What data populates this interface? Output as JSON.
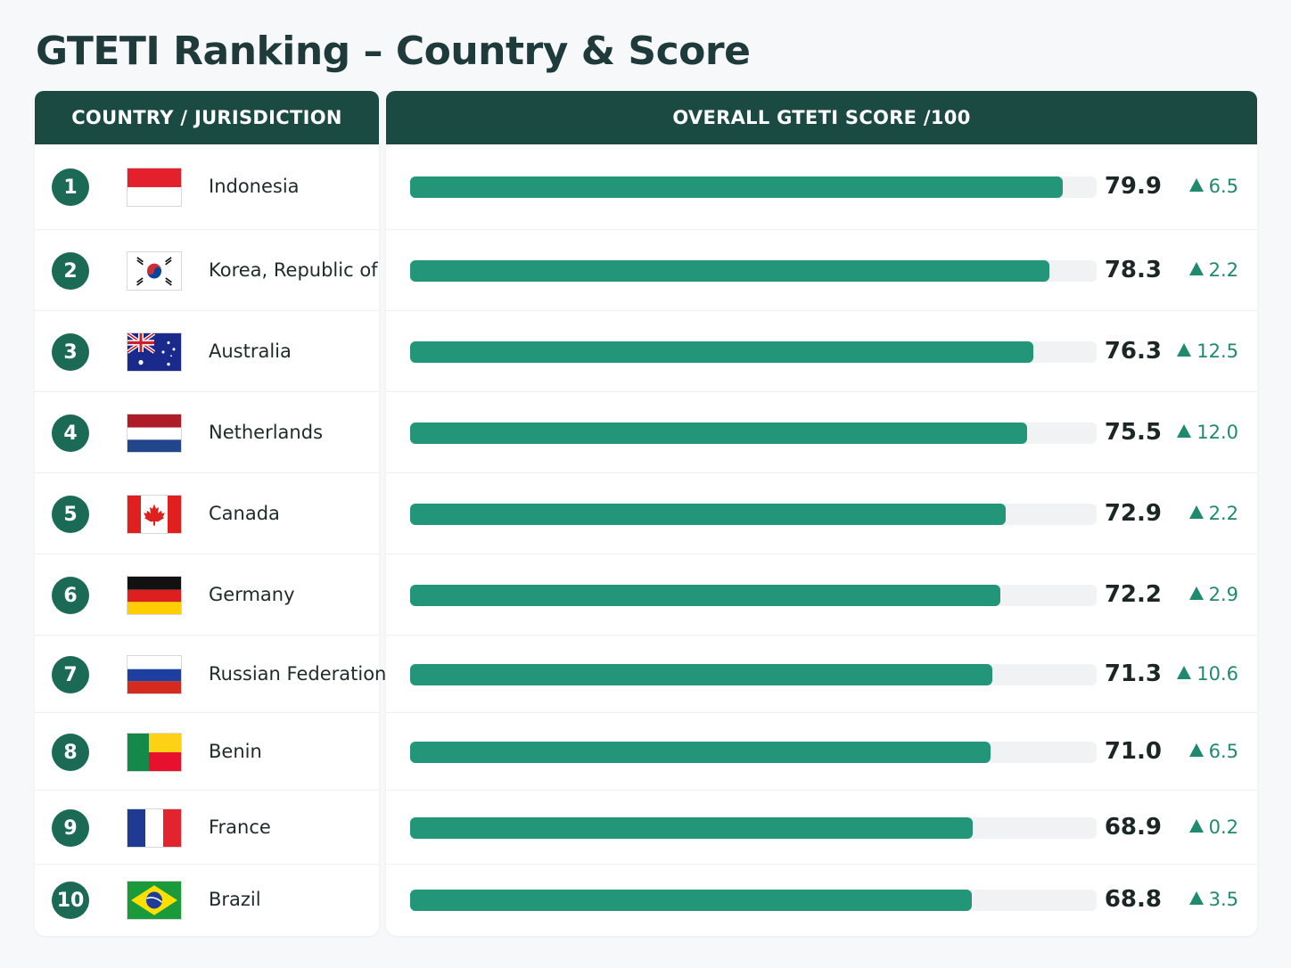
{
  "title": "GTETI Ranking – Country & Score",
  "headers": {
    "country": "COUNTRY / JURISDICTION",
    "score": "OVERALL GTETI SCORE /100"
  },
  "chart_data": {
    "type": "bar",
    "title": "GTETI Ranking – Country & Score",
    "xlabel": "COUNTRY / JURISDICTION",
    "ylabel": "OVERALL GTETI SCORE /100",
    "ylim": [
      0,
      100
    ],
    "categories": [
      "Indonesia",
      "Korea, Republic of",
      "Australia",
      "Netherlands",
      "Canada",
      "Germany",
      "Russian Federation",
      "Benin",
      "France",
      "Brazil"
    ],
    "ranks": [
      "1",
      "2",
      "3",
      "4",
      "5",
      "6",
      "7",
      "8",
      "9",
      "10"
    ],
    "values": [
      79.9,
      78.3,
      76.3,
      75.5,
      72.9,
      72.2,
      71.3,
      71.0,
      68.9,
      68.8
    ],
    "value_labels": [
      "79.9",
      "78.3",
      "76.3",
      "75.5",
      "72.9",
      "72.2",
      "71.3",
      "71.0",
      "68.9",
      "68.8"
    ],
    "changes": [
      "6.5",
      "2.2",
      "12.5",
      "12.0",
      "2.2",
      "2.9",
      "10.6",
      "6.5",
      "0.2",
      "3.5"
    ],
    "flags": [
      "indonesia-flag-icon",
      "south-korea-flag-icon",
      "australia-flag-icon",
      "netherlands-flag-icon",
      "canada-flag-icon",
      "germany-flag-icon",
      "russia-flag-icon",
      "benin-flag-icon",
      "france-flag-icon",
      "brazil-flag-icon"
    ],
    "bar_color": "#23967a",
    "change_color": "#1f8a6e",
    "grid": false,
    "legend": "none"
  }
}
